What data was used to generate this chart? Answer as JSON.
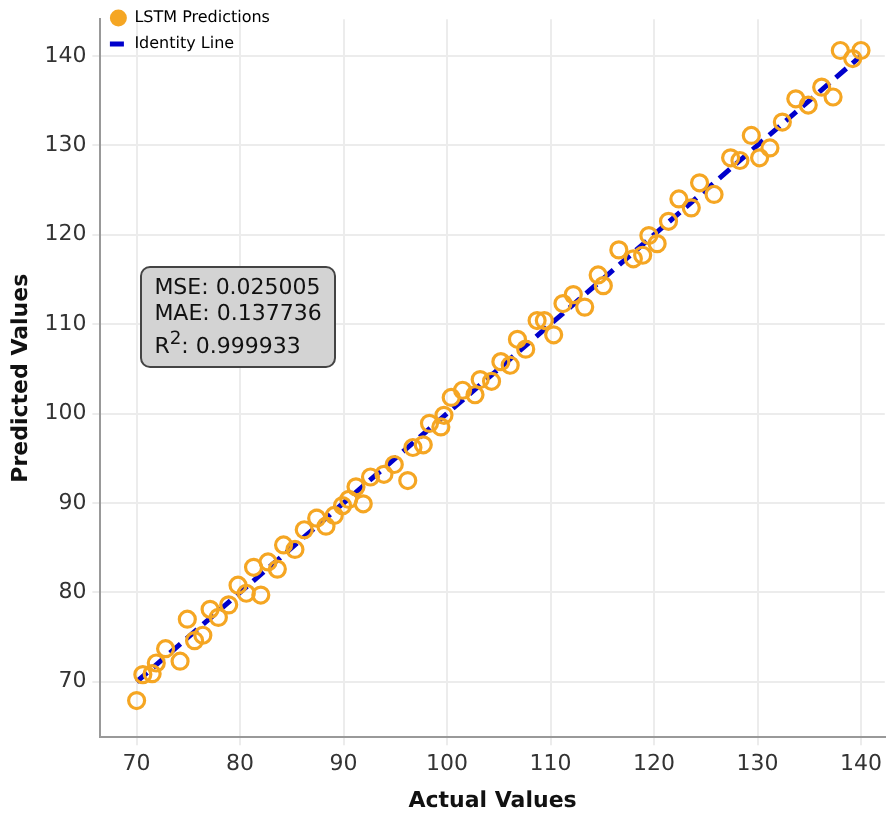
{
  "chart_data": {
    "type": "scatter",
    "xlabel": "Actual Values",
    "ylabel": "Predicted Values",
    "xlim": [
      66.5,
      142.3
    ],
    "ylim": [
      63.8,
      144.1
    ],
    "xticks": [
      70,
      80,
      90,
      100,
      110,
      120,
      130,
      140
    ],
    "yticks": [
      70,
      80,
      90,
      100,
      110,
      120,
      130,
      140
    ],
    "grid": true,
    "legend": "top left",
    "marker": "circle",
    "annotations": [
      "MSE: 0.025005",
      "MAE: 0.137736",
      "R$^{2}$: 0.999933"
    ],
    "series": [
      {
        "name": "LSTM Predictions",
        "color": "#f5a623",
        "x": [
          70,
          70.6,
          71.5,
          71.9,
          72.8,
          74.2,
          74.9,
          75.6,
          76.4,
          77.1,
          77.9,
          78.9,
          79.8,
          80.6,
          81.3,
          82.0,
          82.7,
          83.6,
          84.2,
          85.3,
          86.2,
          87.4,
          88.3,
          89.1,
          89.9,
          90.5,
          91.2,
          91.9,
          92.6,
          93.9,
          94.9,
          96.2,
          96.7,
          97.7,
          98.3,
          99.4,
          99.7,
          100.4,
          101.5,
          102.7,
          103.2,
          104.3,
          105.2,
          106.1,
          106.8,
          107.6,
          108.7,
          109.4,
          110.3,
          111.2,
          112.2,
          113.3,
          114.6,
          115.1,
          116.6,
          118.0,
          118.9,
          119.5,
          120.3,
          121.4,
          122.4,
          123.6,
          124.4,
          125.8,
          127.4,
          128.3,
          129.4,
          130.2,
          131.2,
          132.4,
          133.7,
          134.9,
          136.2,
          137.3,
          138.0,
          139.2,
          140.0
        ],
        "values": [
          67.9,
          70.8,
          70.9,
          72.1,
          73.7,
          72.3,
          77.0,
          74.6,
          75.2,
          78.1,
          77.2,
          78.6,
          80.8,
          79.9,
          82.8,
          79.7,
          83.4,
          82.6,
          85.3,
          84.8,
          87.0,
          88.3,
          87.4,
          88.6,
          89.7,
          90.4,
          91.8,
          89.9,
          92.9,
          93.2,
          94.3,
          92.5,
          96.2,
          96.5,
          98.9,
          98.5,
          99.8,
          101.8,
          102.6,
          102.1,
          103.8,
          103.6,
          105.8,
          105.4,
          108.3,
          107.2,
          110.4,
          110.4,
          108.8,
          112.3,
          113.3,
          111.9,
          115.5,
          114.3,
          118.3,
          117.3,
          117.7,
          119.9,
          119.0,
          121.5,
          124.0,
          123.0,
          125.8,
          124.5,
          128.6,
          128.3,
          131.1,
          128.6,
          129.7,
          132.6,
          135.2,
          134.5,
          136.5,
          135.4,
          140.6,
          139.7,
          140.6
        ]
      },
      {
        "name": "Identity Line",
        "type": "line",
        "color": "#0000cc",
        "line_style": "dashed",
        "marker": "none",
        "x": [
          70,
          140
        ],
        "values": [
          70,
          140
        ]
      }
    ]
  }
}
